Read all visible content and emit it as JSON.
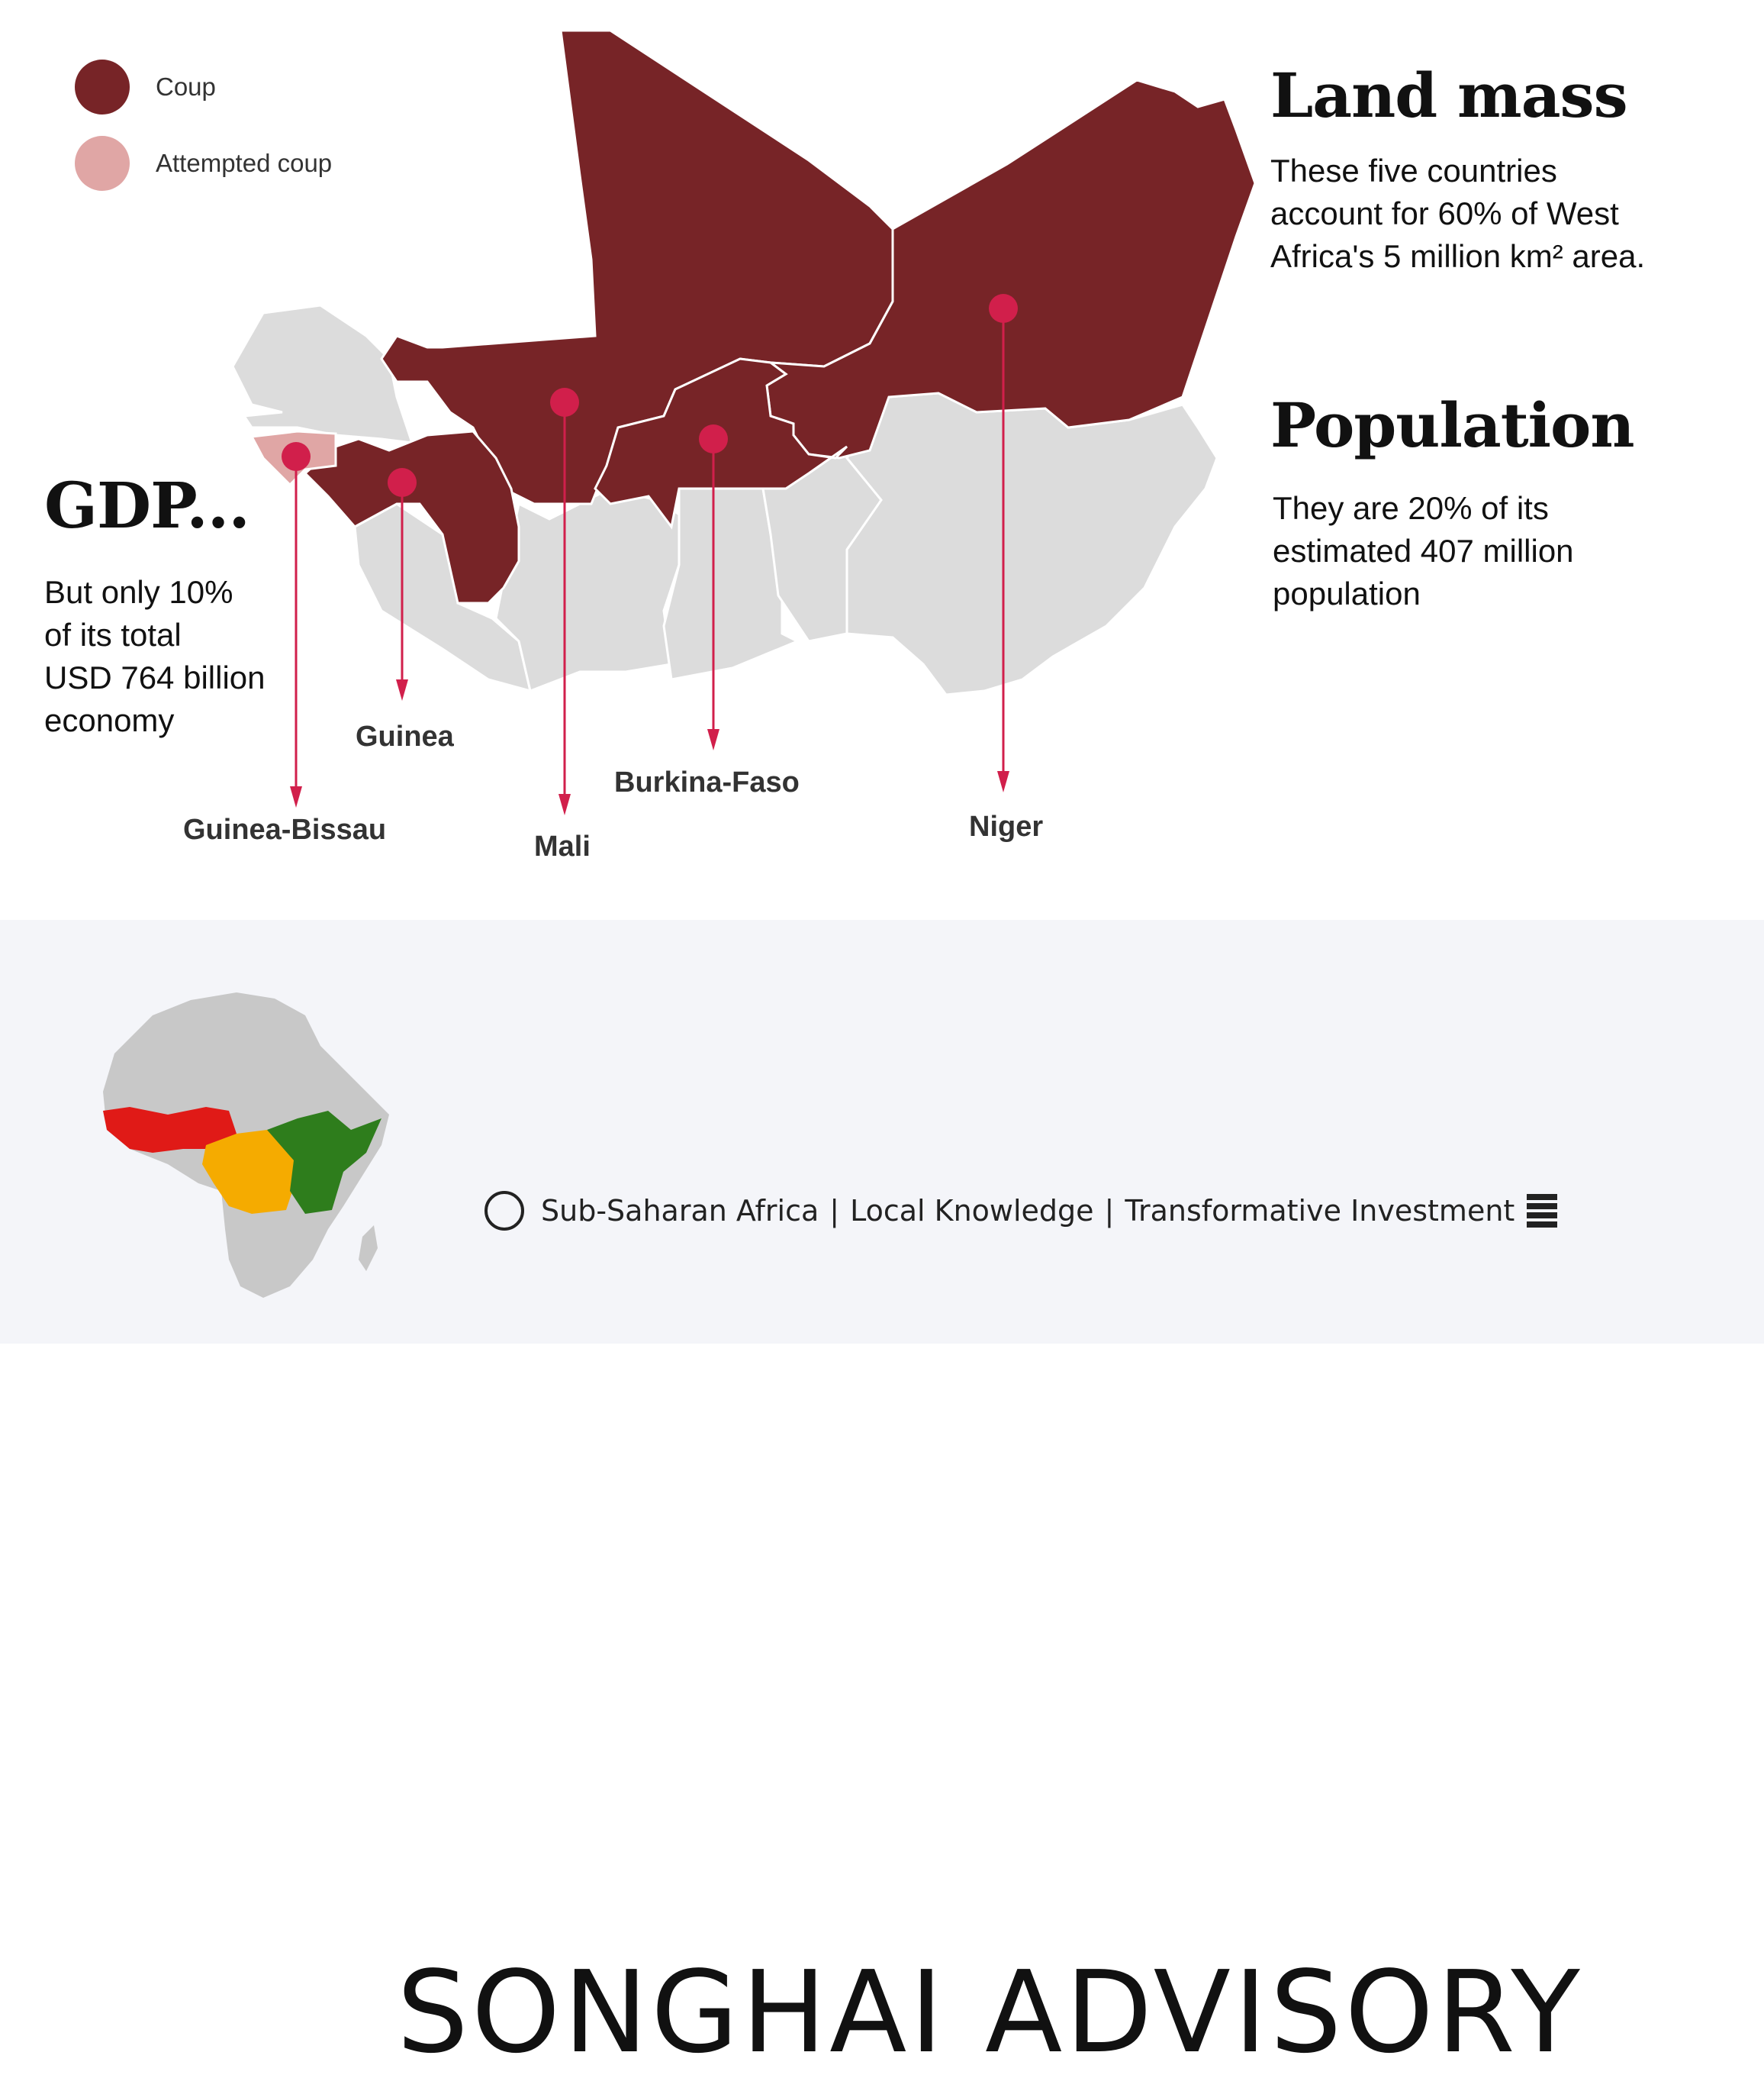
{
  "legend": {
    "items": [
      {
        "label": "Coup",
        "color": "#772427"
      },
      {
        "label": "Attempted coup",
        "color": "#e0a6a5"
      }
    ]
  },
  "land_mass": {
    "title": "Land mass",
    "lines": [
      "These five countries",
      "account for 60% of West",
      "Africa's 5 million km² area."
    ]
  },
  "population": {
    "title": "Population",
    "lines": [
      "They are 20% of its",
      "estimated 407 million",
      "population"
    ]
  },
  "gdp": {
    "title": "GDP...",
    "lines": [
      "But only 10%",
      "of its total",
      "USD 764 billion",
      "economy"
    ]
  },
  "countries": {
    "guinea_bissau": "Guinea-Bissau",
    "guinea": "Guinea",
    "mali": "Mali",
    "burkina_faso": "Burkina-Faso",
    "niger": "Niger"
  },
  "colors": {
    "coup": "#772427",
    "attempted": "#e0a6a5",
    "other": "#dcdcdc",
    "marker": "#d11f4b",
    "footer_bg": "#f4f5f9"
  },
  "footer": {
    "brand": "SONGHAI ADVISORY",
    "tagline": [
      "Sub-Saharan Africa",
      "Local Knowledge",
      "Transformative Investment"
    ],
    "separator": "|"
  }
}
